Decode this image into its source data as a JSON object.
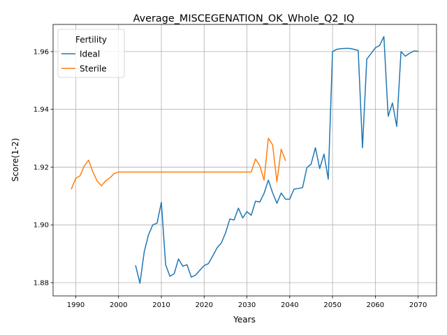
{
  "chart_data": {
    "type": "line",
    "title": "Average_MISCEGENATION_OK_Whole_Q2_IQ",
    "xlabel": "Years",
    "ylabel": "Score(1-2)",
    "xlim": [
      1984.7,
      2074.3
    ],
    "ylim": [
      1.8754,
      1.9694
    ],
    "xticks": [
      1990,
      2000,
      2010,
      2020,
      2030,
      2040,
      2050,
      2060,
      2070
    ],
    "yticks": [
      1.88,
      1.9,
      1.92,
      1.94,
      1.96
    ],
    "xtick_labels": [
      "1990",
      "2000",
      "2010",
      "2020",
      "2030",
      "2040",
      "2050",
      "2060",
      "2070"
    ],
    "ytick_labels": [
      "1.88",
      "1.90",
      "1.92",
      "1.94",
      "1.96"
    ],
    "grid": true,
    "legend": {
      "title": "Fertility",
      "position": "top-left"
    },
    "series": [
      {
        "name": "Ideal",
        "color": "#1f77b4",
        "x": [
          2004,
          2005,
          2006,
          2007,
          2008,
          2009,
          2010,
          2011,
          2012,
          2013,
          2014,
          2015,
          2016,
          2017,
          2018,
          2019,
          2020,
          2021,
          2022,
          2023,
          2024,
          2025,
          2026,
          2027,
          2028,
          2029,
          2030,
          2031,
          2032,
          2033,
          2034,
          2035,
          2036,
          2037,
          2038,
          2039,
          2040,
          2041,
          2042,
          2043,
          2044,
          2045,
          2046,
          2047,
          2048,
          2049,
          2050,
          2051,
          2052,
          2053,
          2054,
          2055,
          2056,
          2057,
          2058,
          2059,
          2060,
          2061,
          2062,
          2063,
          2064,
          2065,
          2066,
          2067,
          2068,
          2069,
          2070
        ],
        "y": [
          1.8858,
          1.8798,
          1.8907,
          1.8966,
          1.9,
          1.9006,
          1.9078,
          1.8862,
          1.8822,
          1.8831,
          1.8882,
          1.8857,
          1.8862,
          1.8819,
          1.8826,
          1.8843,
          1.8859,
          1.8866,
          1.8892,
          1.892,
          1.8937,
          1.8972,
          1.902,
          1.9017,
          1.9058,
          1.9024,
          1.9046,
          1.9033,
          1.9082,
          1.9079,
          1.9109,
          1.9155,
          1.9111,
          1.9075,
          1.911,
          1.9089,
          1.9089,
          1.9124,
          1.9126,
          1.9129,
          1.9198,
          1.9211,
          1.9267,
          1.9195,
          1.9245,
          1.9158,
          1.96,
          1.9608,
          1.961,
          1.9611,
          1.9611,
          1.9608,
          1.9604,
          1.9267,
          1.9574,
          1.9593,
          1.9613,
          1.9621,
          1.9652,
          1.9376,
          1.9422,
          1.9341,
          1.96,
          1.9584,
          1.9594,
          1.9602,
          1.9601
        ]
      },
      {
        "name": "Sterile",
        "color": "#ff7f0e",
        "x": [
          1989,
          1990,
          1991,
          1992,
          1993,
          1994,
          1995,
          1996,
          1997,
          1998,
          1999,
          2000,
          2001,
          2002,
          2003,
          2004,
          2005,
          2006,
          2007,
          2008,
          2009,
          2010,
          2011,
          2012,
          2013,
          2014,
          2015,
          2016,
          2017,
          2018,
          2019,
          2020,
          2021,
          2022,
          2023,
          2024,
          2025,
          2026,
          2027,
          2028,
          2029,
          2030,
          2031,
          2032,
          2033,
          2034,
          2035,
          2036,
          2037,
          2038,
          2039
        ],
        "y": [
          1.9125,
          1.9161,
          1.917,
          1.9204,
          1.9224,
          1.9183,
          1.9152,
          1.9135,
          1.9153,
          1.9163,
          1.9178,
          1.9183,
          1.9183,
          1.9183,
          1.9183,
          1.9183,
          1.9183,
          1.9183,
          1.9183,
          1.9183,
          1.9183,
          1.9183,
          1.9183,
          1.9183,
          1.9183,
          1.9183,
          1.9183,
          1.9183,
          1.9183,
          1.9183,
          1.9183,
          1.9183,
          1.9183,
          1.9183,
          1.9183,
          1.9183,
          1.9183,
          1.9183,
          1.9183,
          1.9183,
          1.9183,
          1.9183,
          1.9183,
          1.9228,
          1.9205,
          1.9155,
          1.93,
          1.9277,
          1.9149,
          1.9262,
          1.9223
        ]
      }
    ]
  }
}
